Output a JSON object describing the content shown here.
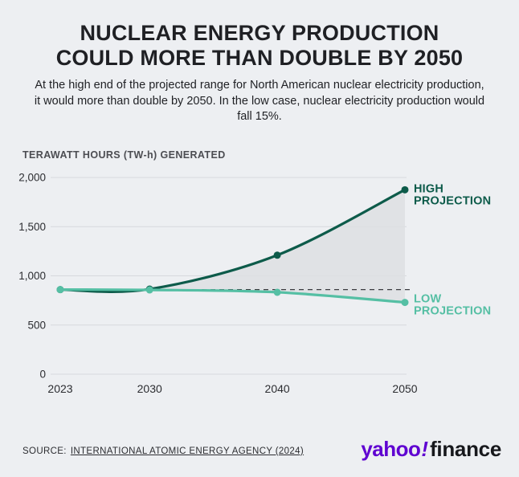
{
  "header": {
    "title_lines": [
      "NUCLEAR ENERGY PRODUCTION",
      "COULD MORE THAN DOUBLE BY 2050"
    ],
    "subtitle": "At the high end of the projected range for North American nuclear electricity production, it would more than double by 2050. In the low case, nuclear electricity production would fall 15%."
  },
  "chart_data": {
    "type": "line",
    "title": "NUCLEAR ENERGY PRODUCTION COULD MORE THAN DOUBLE BY 2050",
    "ylabel": "TERAWATT HOURS (TW-h) GENERATED",
    "xlabel": "",
    "x": [
      2023,
      2030,
      2040,
      2050
    ],
    "xtick_labels": [
      "2023",
      "2030",
      "2040",
      "2050"
    ],
    "ylim": [
      0,
      2000
    ],
    "yticks": [
      0,
      500,
      1000,
      1500,
      2000
    ],
    "ytick_labels": [
      "0",
      "500",
      "1,000",
      "1,500",
      "2,000"
    ],
    "grid": true,
    "baseline_value": 860,
    "band_fill": "#dddfe3",
    "series": [
      {
        "name": "HIGH PROJECTION",
        "label_lines": [
          "HIGH",
          "PROJECTION"
        ],
        "color": "#0d5b4a",
        "values": [
          860,
          865,
          1210,
          1875
        ]
      },
      {
        "name": "LOW PROJECTION",
        "label_lines": [
          "LOW",
          "PROJECTION"
        ],
        "color": "#55bfa4",
        "values": [
          860,
          857,
          833,
          730
        ]
      }
    ],
    "legend_position": "right-of-line-ends"
  },
  "footer": {
    "source_prefix": "SOURCE:",
    "source_link_text": "INTERNATIONAL ATOMIC ENERGY AGENCY (2024)",
    "logo": {
      "yahoo": "yahoo",
      "bang": "!",
      "finance": "finance",
      "purple": "#5f01d1"
    }
  }
}
